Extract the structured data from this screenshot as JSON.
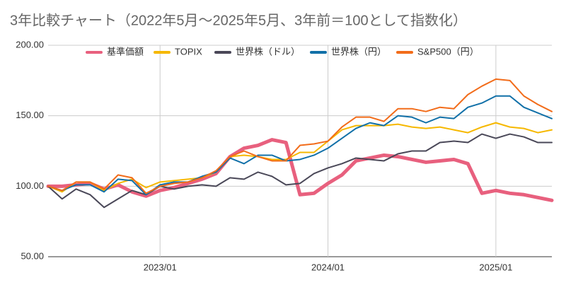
{
  "chart_data": {
    "type": "line",
    "title": "3年比較チャート（2022年5月〜2025年5月、3年前＝100として指数化）",
    "categories": [
      null,
      null,
      null,
      null,
      null,
      null,
      null,
      null,
      "2023/01",
      null,
      null,
      null,
      null,
      null,
      null,
      null,
      null,
      null,
      null,
      null,
      "2024/01",
      null,
      null,
      null,
      null,
      null,
      null,
      null,
      null,
      null,
      null,
      null,
      "2025/01",
      null,
      null,
      null,
      null
    ],
    "series": [
      {
        "name": "基準価額",
        "color": "#e8607e",
        "width": 5,
        "values": [
          100,
          100,
          101,
          102,
          98,
          101,
          96,
          93,
          97,
          99,
          102,
          105,
          109,
          121,
          127,
          129,
          133,
          131,
          94,
          95,
          102,
          108,
          118,
          120,
          122,
          121,
          119,
          117,
          118,
          119,
          116,
          95,
          97,
          95,
          94,
          92,
          90
        ]
      },
      {
        "name": "TOPIX",
        "color": "#f6b800",
        "width": 2,
        "values": [
          100,
          96,
          103,
          103,
          97,
          102,
          105,
          99,
          103,
          104,
          105,
          106,
          110,
          121,
          122,
          121,
          119,
          119,
          124,
          124,
          132,
          140,
          143,
          143,
          143,
          144,
          142,
          141,
          142,
          140,
          138,
          142,
          145,
          142,
          141,
          138,
          140
        ]
      },
      {
        "name": "世界株（ドル）",
        "color": "#4a4858",
        "width": 2,
        "values": [
          100,
          91,
          98,
          94,
          85,
          91,
          97,
          94,
          100,
          98,
          100,
          101,
          100,
          106,
          105,
          110,
          107,
          101,
          102,
          109,
          113,
          116,
          120,
          119,
          118,
          123,
          125,
          125,
          131,
          132,
          131,
          137,
          134,
          137,
          135,
          131,
          131
        ]
      },
      {
        "name": "世界株（円）",
        "color": "#1170a8",
        "width": 2,
        "values": [
          100,
          97,
          101,
          101,
          96,
          105,
          104,
          94,
          101,
          103,
          103,
          107,
          110,
          120,
          116,
          122,
          122,
          118,
          119,
          122,
          127,
          134,
          141,
          145,
          143,
          150,
          149,
          145,
          149,
          148,
          156,
          159,
          164,
          164,
          156,
          152,
          148
        ]
      },
      {
        "name": "S&P500（円）",
        "color": "#f26c1a",
        "width": 2,
        "values": [
          100,
          97,
          103,
          103,
          98,
          108,
          106,
          95,
          100,
          102,
          103,
          106,
          111,
          121,
          125,
          121,
          118,
          118,
          129,
          130,
          132,
          142,
          149,
          149,
          146,
          155,
          155,
          153,
          156,
          155,
          165,
          171,
          176,
          175,
          164,
          158,
          153
        ]
      }
    ],
    "ylim": [
      50,
      200
    ],
    "yticks": [
      {
        "value": 50,
        "label": "50.00"
      },
      {
        "value": 100,
        "label": "100.00"
      },
      {
        "value": 150,
        "label": "150.00"
      },
      {
        "value": 200,
        "label": "200.00"
      }
    ],
    "grid": true,
    "legend": "top"
  }
}
